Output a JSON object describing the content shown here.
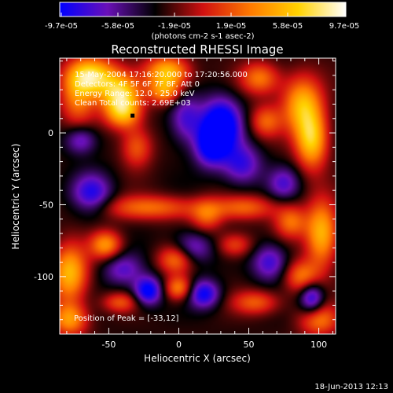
{
  "chart_data": {
    "type": "heatmap",
    "title": "Reconstructed RHESSI Image",
    "xlabel": "Heliocentric X (arcsec)",
    "ylabel": "Heliocentric Y (arcsec)",
    "xlim": [
      -85,
      112
    ],
    "ylim": [
      -140,
      52
    ],
    "xticks": [
      -50,
      0,
      50,
      100
    ],
    "yticks": [
      0,
      -50,
      -100
    ],
    "grid": false,
    "colorbar": {
      "ticks": [
        "-9.7e-05",
        "-5.8e-05",
        "-1.9e-05",
        "1.9e-05",
        "5.8e-05",
        "9.7e-05"
      ],
      "unit_label": "(photons cm-2 s-1 asec-2)",
      "min": -9.7e-05,
      "max": 9.7e-05,
      "colormap": [
        "#0000ff",
        "#6a10b8",
        "#000000",
        "#d01010",
        "#ff7a00",
        "#ffd200",
        "#ffffff"
      ]
    },
    "annotations": [
      "15-May-2004 17:16:20.000 to 17:20:56.000",
      "Detectors: 4F 5F 6F 7F 8F, Att 0",
      "Energy Range: 12.0 - 25.0 keV",
      "Clean    Total counts: 2.69E+03"
    ],
    "peak_label": "Position of Peak = [-33,12]",
    "peak": [
      -33,
      12
    ],
    "blobs": [
      {
        "x": -62,
        "y": 40,
        "v": 1.0,
        "sx": 12,
        "sy": 9
      },
      {
        "x": -72,
        "y": 25,
        "v": 0.6,
        "sx": 9,
        "sy": 14
      },
      {
        "x": -42,
        "y": 28,
        "v": 0.85,
        "sx": 10,
        "sy": 9
      },
      {
        "x": -40,
        "y": 14,
        "v": 0.8,
        "sx": 9,
        "sy": 8
      },
      {
        "x": -8,
        "y": 42,
        "v": 0.9,
        "sx": 11,
        "sy": 8
      },
      {
        "x": -10,
        "y": 28,
        "v": 0.6,
        "sx": 8,
        "sy": 6
      },
      {
        "x": 58,
        "y": 38,
        "v": 0.6,
        "sx": 10,
        "sy": 8
      },
      {
        "x": 88,
        "y": 20,
        "v": 0.8,
        "sx": 10,
        "sy": 14
      },
      {
        "x": 95,
        "y": -5,
        "v": 0.9,
        "sx": 8,
        "sy": 14
      },
      {
        "x": 62,
        "y": 8,
        "v": 0.5,
        "sx": 8,
        "sy": 8
      },
      {
        "x": 102,
        "y": -70,
        "v": 0.85,
        "sx": 8,
        "sy": 16
      },
      {
        "x": 88,
        "y": -100,
        "v": 0.6,
        "sx": 9,
        "sy": 8
      },
      {
        "x": 80,
        "y": -62,
        "v": 0.55,
        "sx": 8,
        "sy": 8
      },
      {
        "x": -20,
        "y": -52,
        "v": 0.55,
        "sx": 26,
        "sy": 6
      },
      {
        "x": 48,
        "y": -52,
        "v": 0.5,
        "sx": 16,
        "sy": 6
      },
      {
        "x": 20,
        "y": -58,
        "v": 0.45,
        "sx": 8,
        "sy": 8
      },
      {
        "x": -52,
        "y": -78,
        "v": 0.7,
        "sx": 8,
        "sy": 7
      },
      {
        "x": -2,
        "y": -88,
        "v": 0.6,
        "sx": 9,
        "sy": 7
      },
      {
        "x": 40,
        "y": -78,
        "v": 0.45,
        "sx": 9,
        "sy": 6
      },
      {
        "x": -30,
        "y": -10,
        "v": 0.5,
        "sx": 8,
        "sy": 10
      },
      {
        "x": -78,
        "y": -98,
        "v": 0.85,
        "sx": 9,
        "sy": 14
      },
      {
        "x": -78,
        "y": -130,
        "v": 0.7,
        "sx": 9,
        "sy": 8
      },
      {
        "x": 0,
        "y": -108,
        "v": 0.65,
        "sx": 7,
        "sy": 6
      },
      {
        "x": -42,
        "y": -118,
        "v": 0.45,
        "sx": 9,
        "sy": 5
      },
      {
        "x": 55,
        "y": -118,
        "v": 0.5,
        "sx": 12,
        "sy": 6
      },
      {
        "x": 100,
        "y": -130,
        "v": 0.6,
        "sx": 10,
        "sy": 8
      },
      {
        "x": 30,
        "y": 5,
        "v": -1.0,
        "sx": 10,
        "sy": 13
      },
      {
        "x": 22,
        "y": -10,
        "v": -0.6,
        "sx": 8,
        "sy": 10
      },
      {
        "x": -22,
        "y": -110,
        "v": -0.8,
        "sx": 7,
        "sy": 7
      },
      {
        "x": 18,
        "y": -112,
        "v": -0.7,
        "sx": 8,
        "sy": 7
      },
      {
        "x": 95,
        "y": -115,
        "v": -0.7,
        "sx": 6,
        "sy": 8
      },
      {
        "x": 45,
        "y": -22,
        "v": -0.55,
        "sx": 10,
        "sy": 10
      },
      {
        "x": -62,
        "y": -42,
        "v": -0.6,
        "sx": 10,
        "sy": 10
      },
      {
        "x": 10,
        "y": -80,
        "v": -0.5,
        "sx": 10,
        "sy": 8
      },
      {
        "x": 65,
        "y": -90,
        "v": -0.55,
        "sx": 9,
        "sy": 9
      },
      {
        "x": -70,
        "y": -5,
        "v": -0.5,
        "sx": 8,
        "sy": 7
      },
      {
        "x": 5,
        "y": 10,
        "v": -0.5,
        "sx": 8,
        "sy": 12
      },
      {
        "x": 75,
        "y": -35,
        "v": -0.45,
        "sx": 8,
        "sy": 8
      },
      {
        "x": -40,
        "y": -95,
        "v": -0.45,
        "sx": 10,
        "sy": 8
      }
    ]
  },
  "timestamp": "18-Jun-2013 12:13"
}
